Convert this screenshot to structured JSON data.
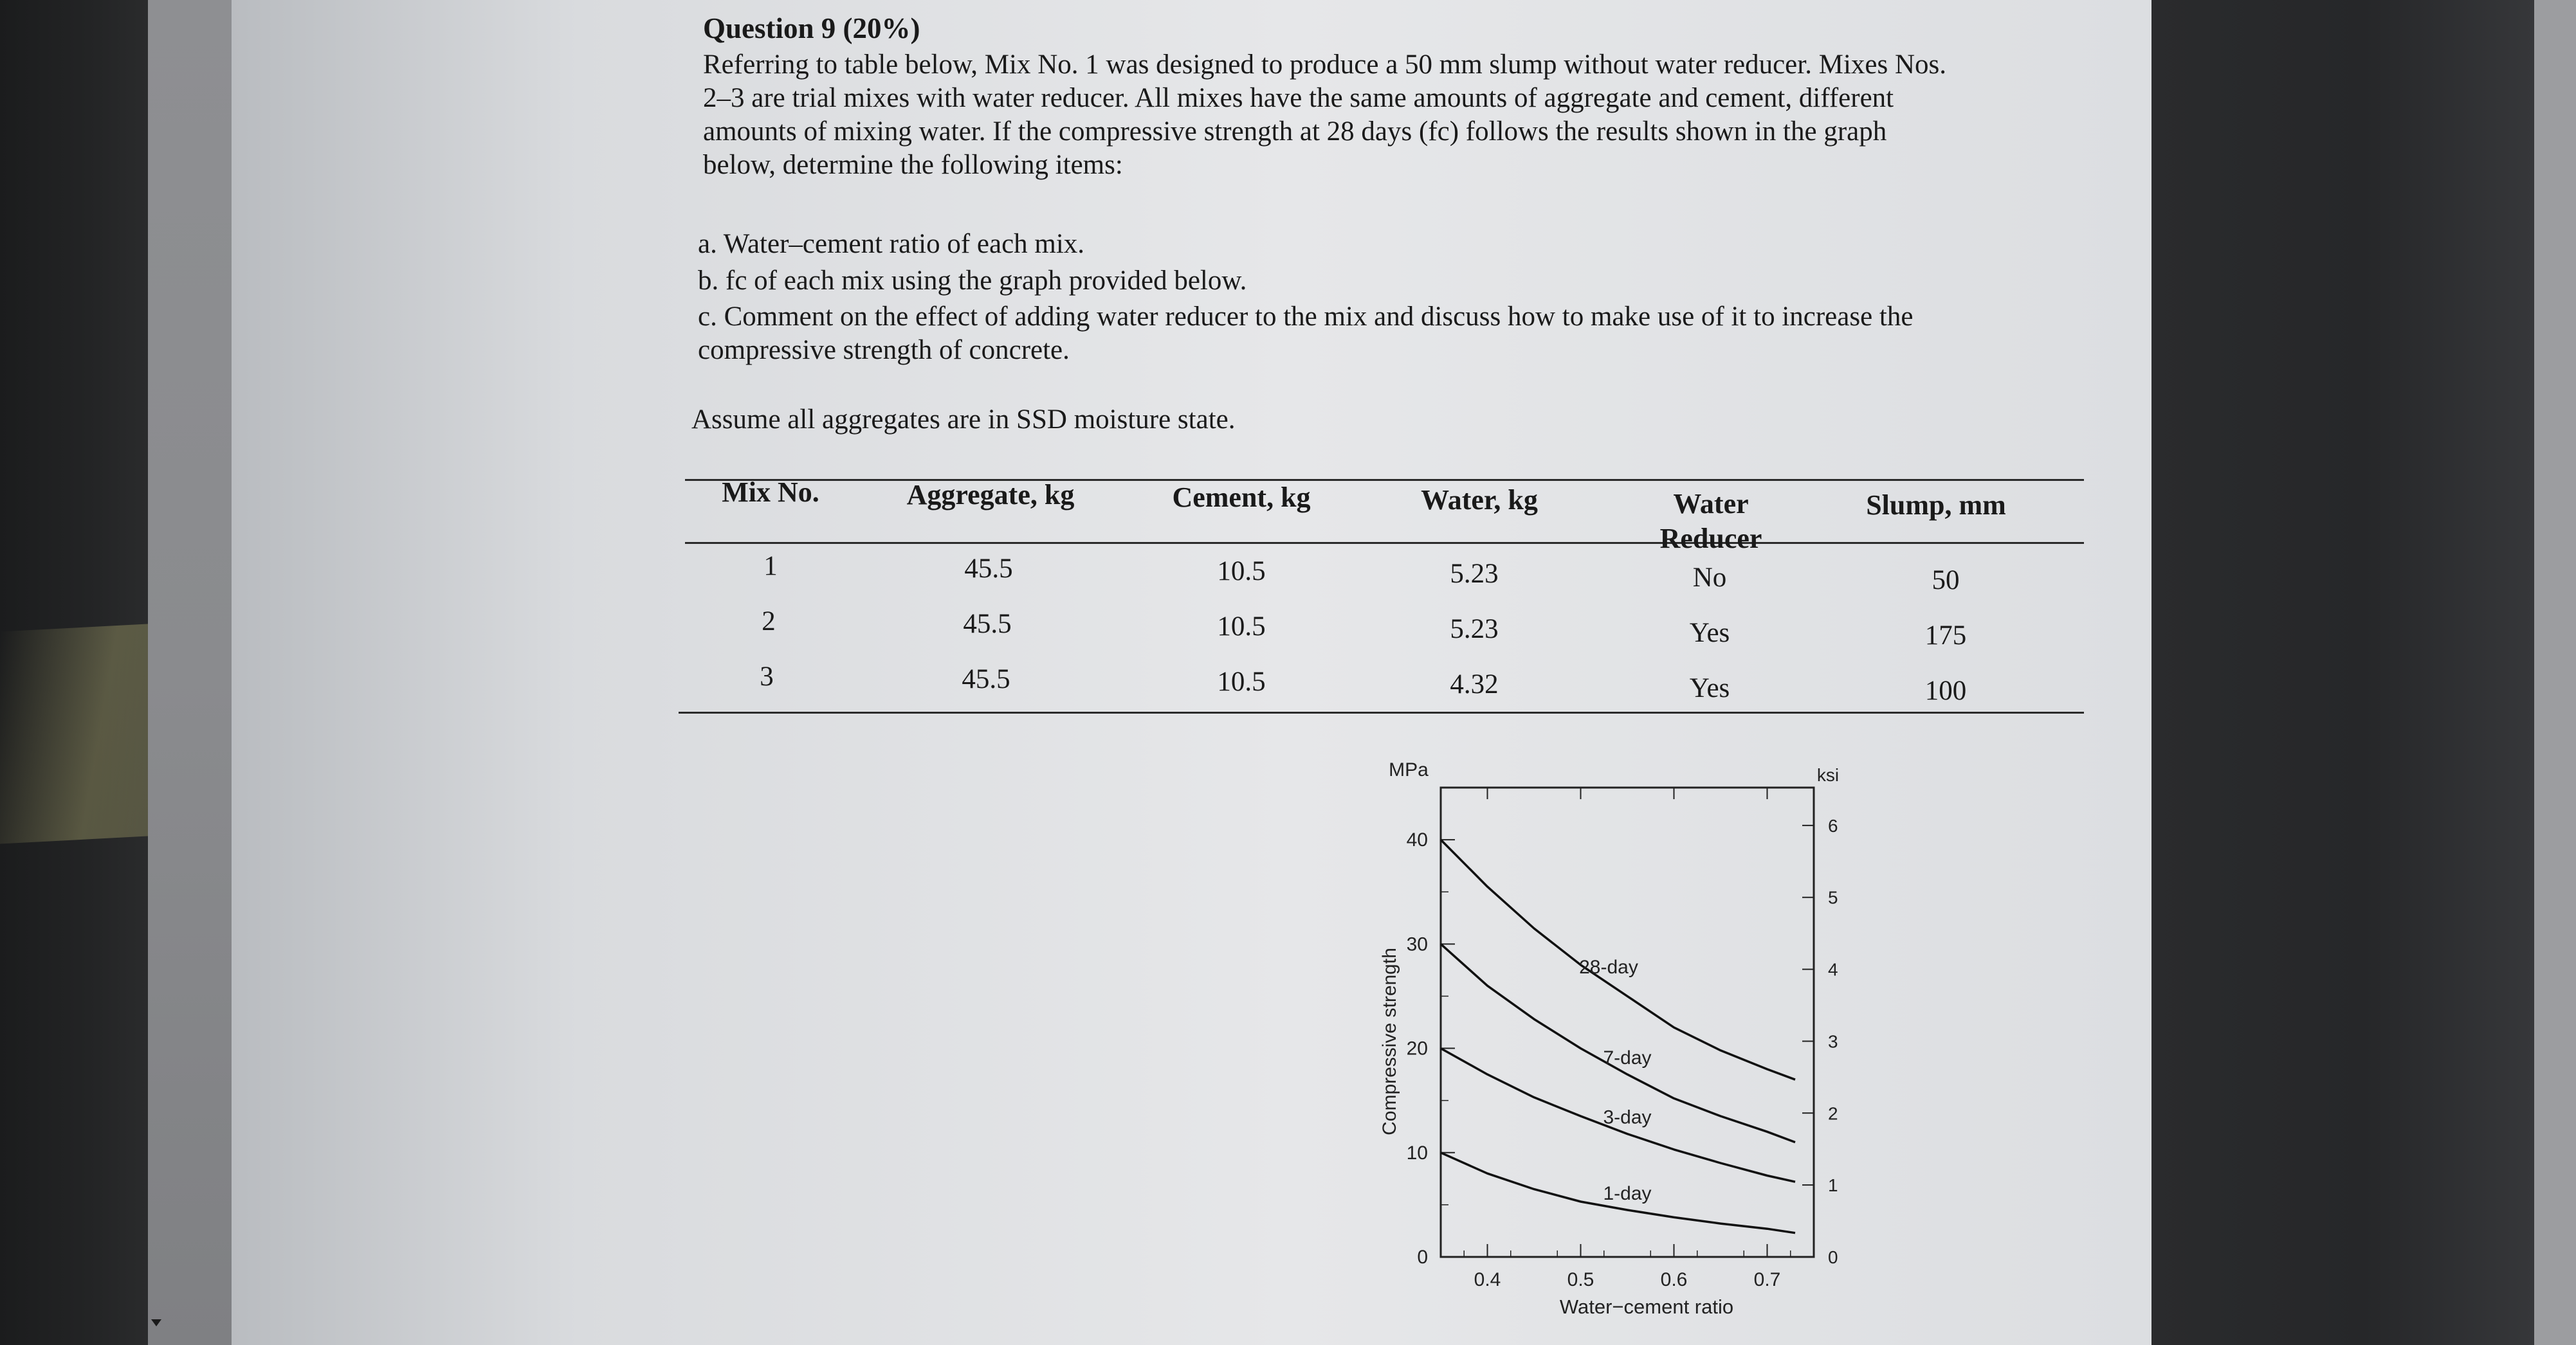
{
  "question": {
    "title": "Question 9 (20%)",
    "paragraph": [
      "Referring to table below, Mix No. 1 was designed to produce a 50 mm slump without water reducer. Mixes Nos.",
      "2–3 are trial mixes with water reducer. All mixes have the same amounts of aggregate and cement, different",
      "amounts of mixing water. If the compressive strength at 28 days (fc) follows the results shown in the graph",
      "below, determine the following items:"
    ],
    "items": [
      "a. Water–cement ratio of each mix.",
      "b. fc of each mix using the graph provided below.",
      "c. Comment on the effect of adding water reducer to the mix and discuss how to make use of it to increase the",
      "compressive strength of concrete."
    ],
    "assumption": "Assume all aggregates are in SSD moisture state."
  },
  "table": {
    "headers": [
      "Mix No.",
      "Aggregate, kg",
      "Cement, kg",
      "Water, kg",
      "Water",
      "Reducer",
      "Slump, mm"
    ],
    "rows": [
      [
        "1",
        "45.5",
        "10.5",
        "5.23",
        "No",
        "50"
      ],
      [
        "2",
        "45.5",
        "10.5",
        "5.23",
        "Yes",
        "175"
      ],
      [
        "3",
        "45.5",
        "10.5",
        "4.32",
        "Yes",
        "100"
      ]
    ]
  },
  "chart_data": {
    "type": "line",
    "title": "",
    "xlabel": "Water−cement ratio",
    "ylabel": "Compressive strength",
    "y_unit_left": "MPa",
    "y_unit_right": "ksi",
    "xlim": [
      0.35,
      0.75
    ],
    "ylim": [
      0,
      45
    ],
    "x_ticks": [
      "0.4",
      "0.5",
      "0.6",
      "0.7"
    ],
    "y_ticks_left": [
      "0",
      "10",
      "20",
      "30",
      "40"
    ],
    "y_ticks_right": [
      "0",
      "1",
      "2",
      "3",
      "4",
      "5",
      "6"
    ],
    "grid": false,
    "series": [
      {
        "name": "28-day",
        "x": [
          0.35,
          0.4,
          0.45,
          0.5,
          0.55,
          0.6,
          0.65,
          0.7,
          0.73
        ],
        "y": [
          40.0,
          35.5,
          31.5,
          28.0,
          25.0,
          22.0,
          19.8,
          18.0,
          17.0
        ]
      },
      {
        "name": "7-day",
        "x": [
          0.35,
          0.4,
          0.45,
          0.5,
          0.55,
          0.6,
          0.65,
          0.7,
          0.73
        ],
        "y": [
          30.0,
          26.0,
          22.8,
          20.0,
          17.5,
          15.2,
          13.5,
          12.0,
          11.0
        ]
      },
      {
        "name": "3-day",
        "x": [
          0.35,
          0.4,
          0.45,
          0.5,
          0.55,
          0.6,
          0.65,
          0.7,
          0.73
        ],
        "y": [
          20.0,
          17.5,
          15.3,
          13.5,
          11.8,
          10.3,
          9.0,
          7.8,
          7.2
        ]
      },
      {
        "name": "1-day",
        "x": [
          0.35,
          0.4,
          0.45,
          0.5,
          0.55,
          0.6,
          0.65,
          0.7,
          0.73
        ],
        "y": [
          10.0,
          8.0,
          6.5,
          5.3,
          4.5,
          3.8,
          3.2,
          2.7,
          2.3
        ]
      }
    ]
  }
}
